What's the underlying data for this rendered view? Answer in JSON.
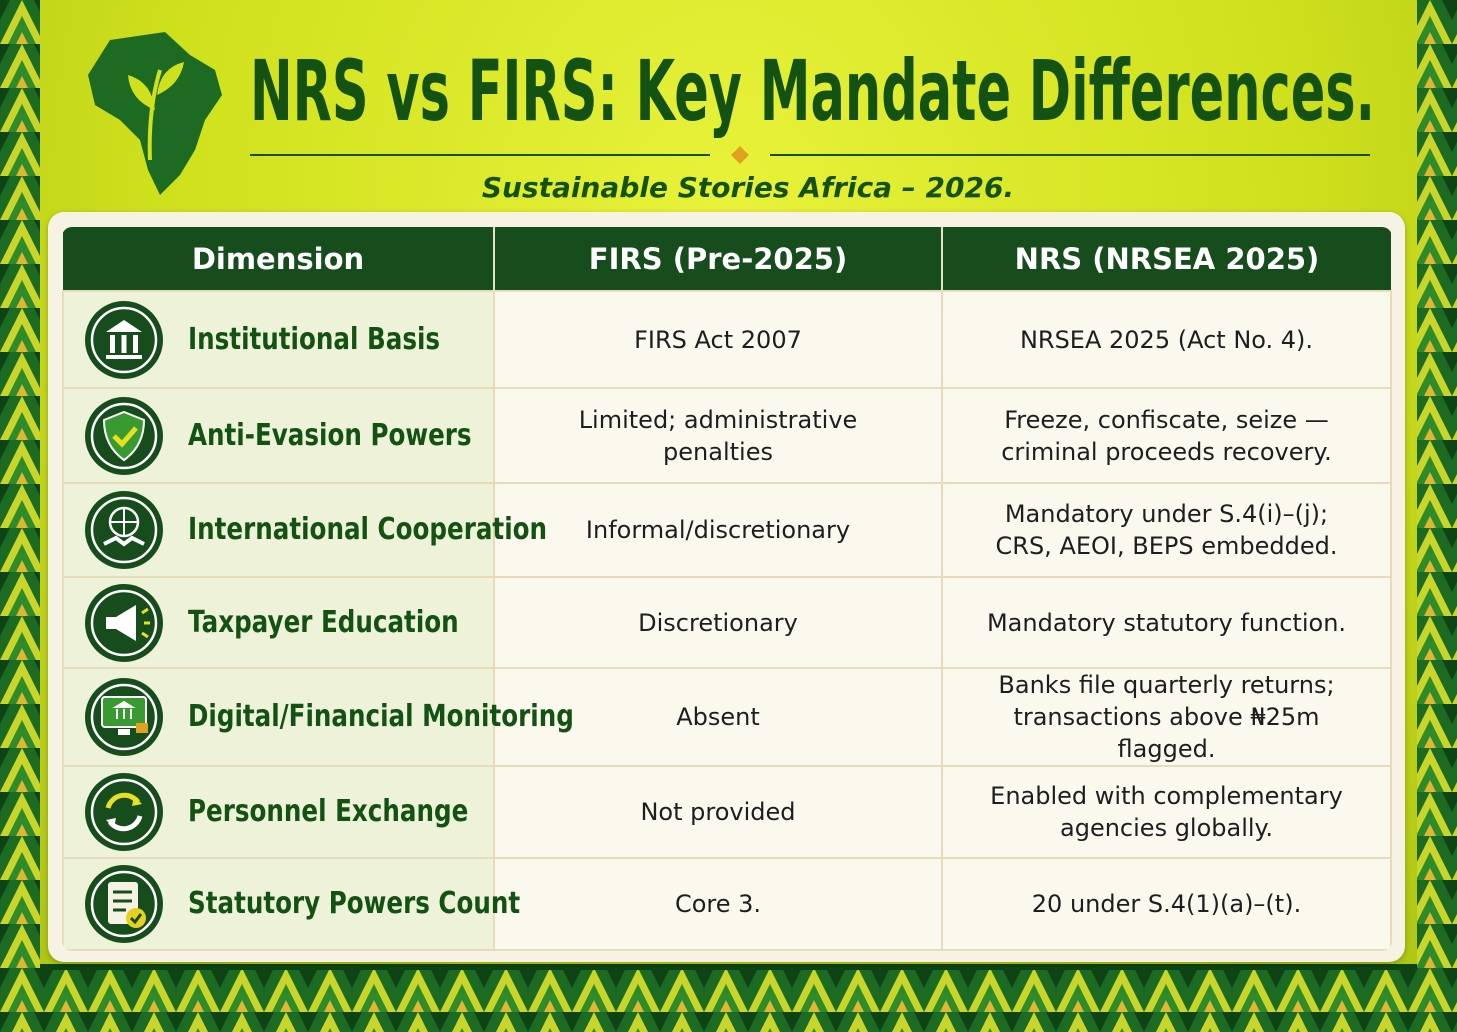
{
  "header": {
    "title": "NRS vs FIRS: Key Mandate Differences.",
    "subtitle": "Sustainable Stories Africa – 2026."
  },
  "table": {
    "columns": [
      "Dimension",
      "FIRS (Pre-2025)",
      "NRS (NRSEA 2025)"
    ],
    "rows": [
      [
        "Institutional Basis",
        "FIRS Act 2007",
        "NRSEA 2025 (Act No. 4)."
      ],
      [
        "Anti-Evasion Powers",
        "Limited; administrative penalties",
        "Freeze, confiscate, seize — criminal proceeds recovery."
      ],
      [
        "International Cooperation",
        "Informal/discretionary",
        "Mandatory under S.4(i)–(j); CRS, AEOI, BEPS embedded."
      ],
      [
        "Taxpayer Education",
        "Discretionary",
        "Mandatory statutory function."
      ],
      [
        "Digital/Financial Monitoring",
        "Absent",
        "Banks file quarterly returns; transactions above ₦25m flagged."
      ],
      [
        "Personnel Exchange",
        "Not provided",
        "Enabled with complementary agencies globally."
      ],
      [
        "Statutory Powers Count",
        "Core 3.",
        "20 under S.4(1)(a)–(t)."
      ]
    ]
  }
}
